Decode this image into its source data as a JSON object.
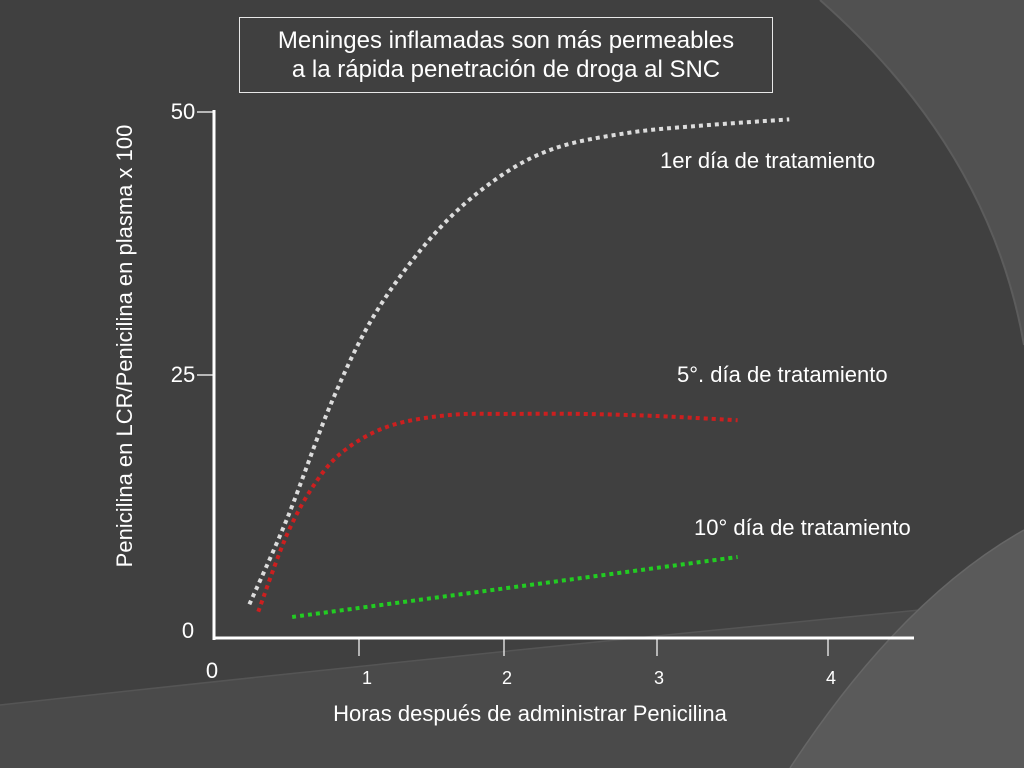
{
  "title": {
    "line1": "Meninges inflamadas son más permeables",
    "line2": "a la rápida penetración de droga al SNC"
  },
  "colors": {
    "background": "#404040",
    "text": "#ffffff",
    "axis": "#ffffff",
    "series_white": "#dcdcdc",
    "series_red": "#cc1f1f",
    "series_green": "#22cc22"
  },
  "chart_data": {
    "type": "line",
    "title": "Meninges inflamadas son más permeables a la rápida penetración de droga al SNC",
    "xlabel": "Horas después de administrar Penicilina",
    "ylabel": "Penicilina en LCR/Penicilina en plasma x 100",
    "xlim": [
      0,
      4.5
    ],
    "ylim": [
      0,
      50
    ],
    "x_ticks": [
      "0",
      "1",
      "2",
      "3",
      "4"
    ],
    "y_ticks": [
      "0",
      "25",
      "50"
    ],
    "grid": false,
    "series": [
      {
        "name": "1er día de tratamiento",
        "color": "#dcdcdc",
        "x": [
          0.24,
          0.5,
          0.8,
          1.1,
          1.5,
          1.9,
          2.3,
          2.8,
          3.3,
          3.9
        ],
        "y": [
          3.2,
          11.5,
          22.5,
          31.0,
          38.5,
          43.5,
          46.5,
          48.0,
          48.7,
          49.3
        ]
      },
      {
        "name": "5°. día de tratamiento",
        "color": "#cc1f1f",
        "x": [
          0.3,
          0.5,
          0.7,
          0.9,
          1.2,
          1.6,
          2.0,
          2.5,
          3.0,
          3.55
        ],
        "y": [
          2.5,
          10.0,
          15.0,
          18.0,
          20.2,
          21.2,
          21.3,
          21.3,
          21.1,
          20.7
        ]
      },
      {
        "name": "10° día de tratamiento",
        "color": "#22cc22",
        "x": [
          0.53,
          3.55
        ],
        "y": [
          2.0,
          7.7
        ]
      }
    ]
  }
}
